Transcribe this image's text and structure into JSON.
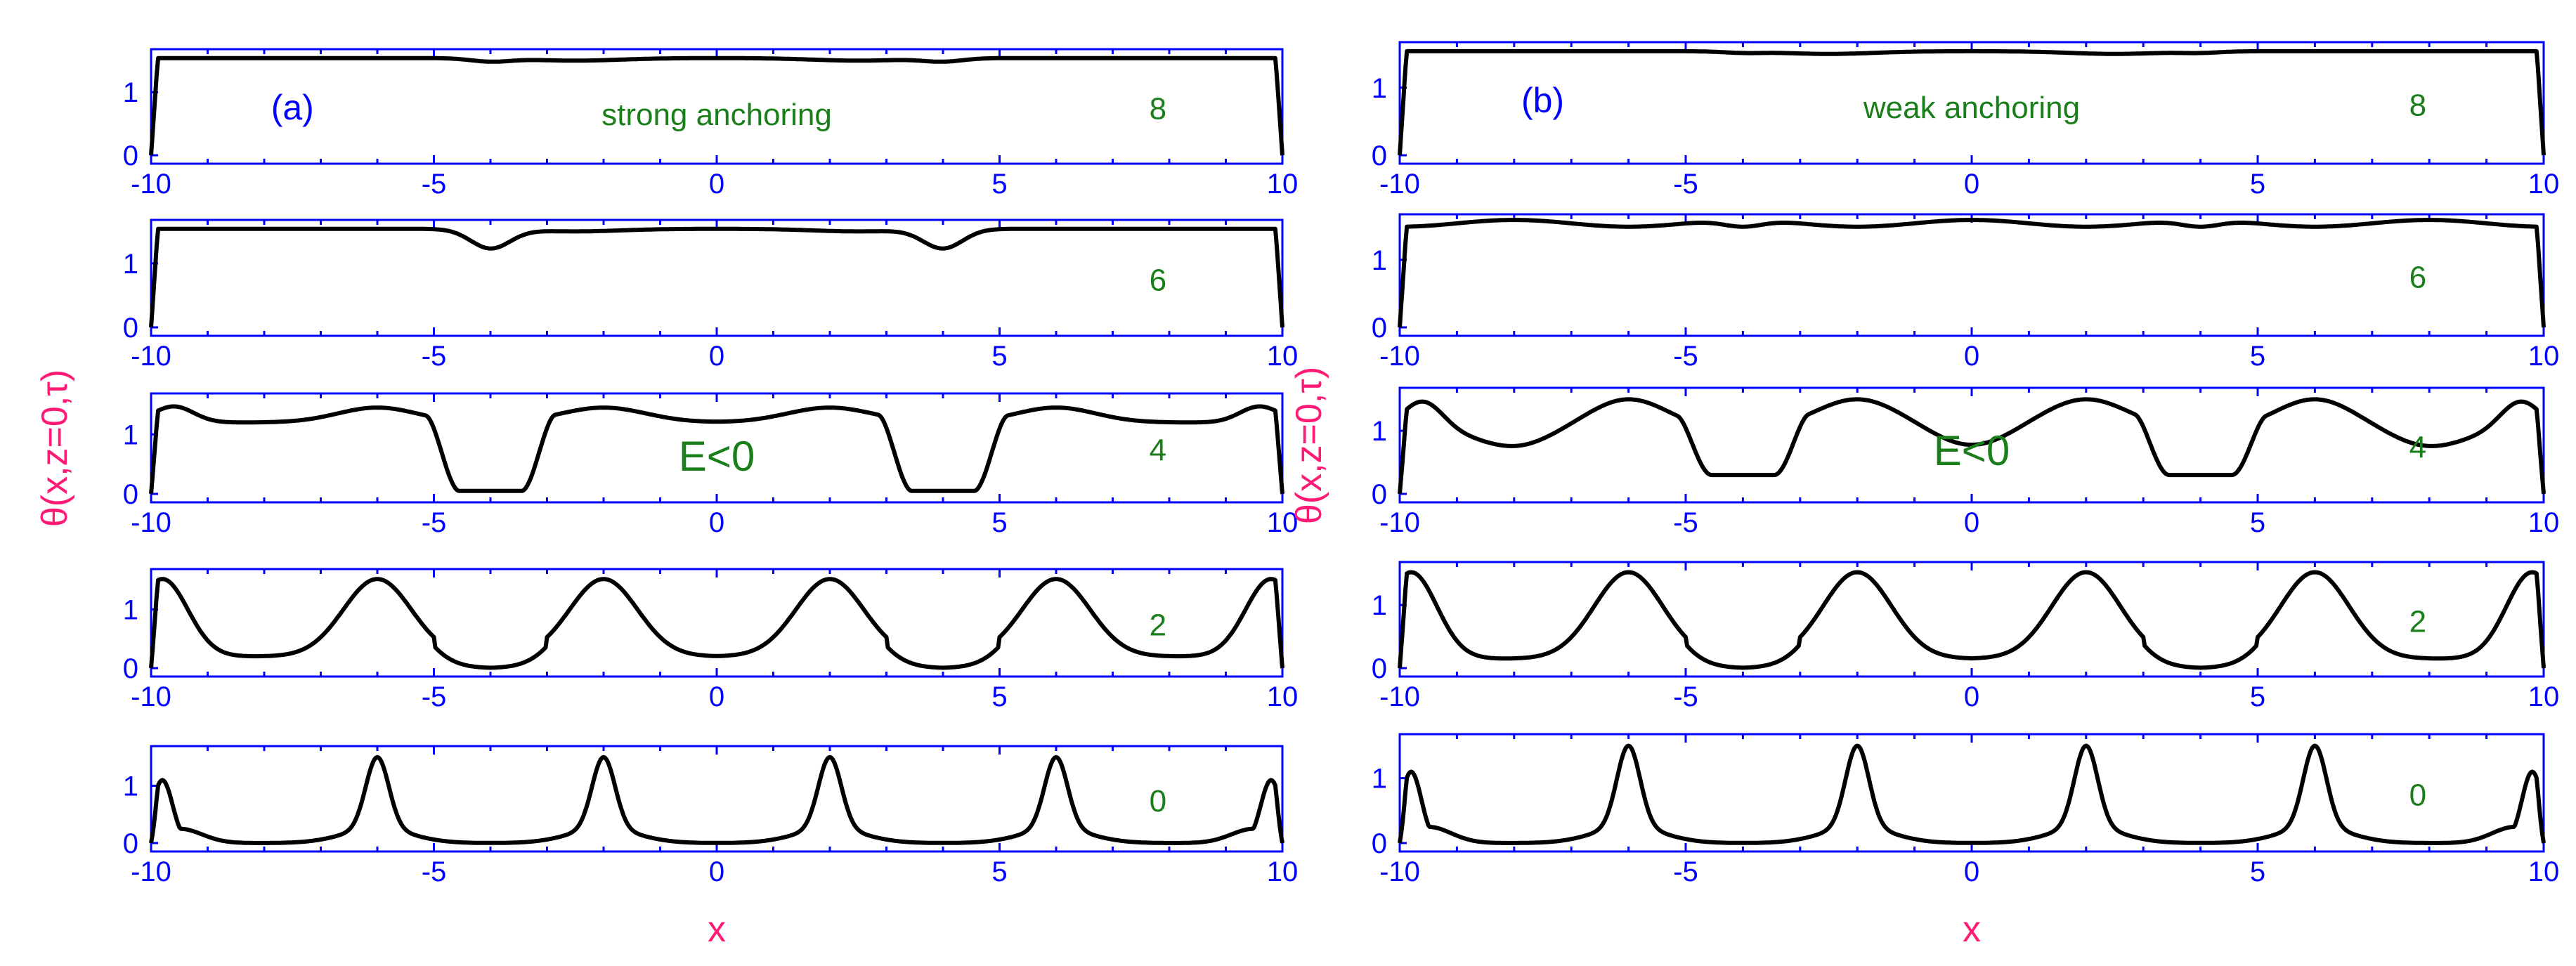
{
  "colors": {
    "axis": "#0000ff",
    "curve": "#000000",
    "annotation": "#1a7f1a",
    "axis_label": "#ff1a75",
    "background": "#ffffff"
  },
  "chart_data": [
    {
      "panel_label": "(a)",
      "type": "line",
      "xlabel": "x",
      "ylabel": "θ(x,z=0,τ)",
      "xlim": [
        -10,
        10
      ],
      "ylim": [
        0,
        1.57
      ],
      "x_ticks": [
        "-10",
        "-5",
        "0",
        "5",
        "10"
      ],
      "y_ticks": [
        "0",
        "1"
      ],
      "annotations": [
        "strong anchoring",
        "E<0"
      ],
      "subplots": [
        {
          "tau_label": "8",
          "profile": "flat",
          "params": {
            "dip_depth": 0.05
          }
        },
        {
          "tau_label": "6",
          "profile": "flat",
          "params": {
            "dip_depth": 0.3
          }
        },
        {
          "tau_label": "4",
          "profile": "wells",
          "params": {
            "high": 1.2,
            "bump": 1.45,
            "low": 0.05
          }
        },
        {
          "tau_label": "2",
          "profile": "wide-peaks",
          "params": {
            "base_outer": 0.2,
            "base_inner": 0.0
          }
        },
        {
          "tau_label": "0",
          "profile": "narrow-peaks",
          "params": {
            "base": 0.0
          }
        }
      ]
    },
    {
      "panel_label": "(b)",
      "type": "line",
      "xlabel": "x",
      "ylabel": "θ(x,z=0,τ)",
      "xlim": [
        -10,
        10
      ],
      "ylim": [
        0,
        1.57
      ],
      "x_ticks": [
        "-10",
        "-5",
        "0",
        "5",
        "10"
      ],
      "y_ticks": [
        "0",
        "1"
      ],
      "annotations": [
        "weak anchoring",
        "E<0"
      ],
      "subplots": [
        {
          "tau_label": "8",
          "profile": "flat",
          "params": {
            "dip_depth": 0.02
          }
        },
        {
          "tau_label": "6",
          "profile": "flat-wavy",
          "params": {
            "dip_depth": 0.1
          }
        },
        {
          "tau_label": "4",
          "profile": "wells-weak",
          "params": {
            "high": 1.0,
            "bump": 1.5,
            "low": 0.3
          }
        },
        {
          "tau_label": "2",
          "profile": "wide-peaks",
          "params": {
            "base_outer": 0.15,
            "base_inner": 0.0
          }
        },
        {
          "tau_label": "0",
          "profile": "narrow-peaks",
          "params": {
            "base": 0.0
          }
        }
      ]
    }
  ]
}
